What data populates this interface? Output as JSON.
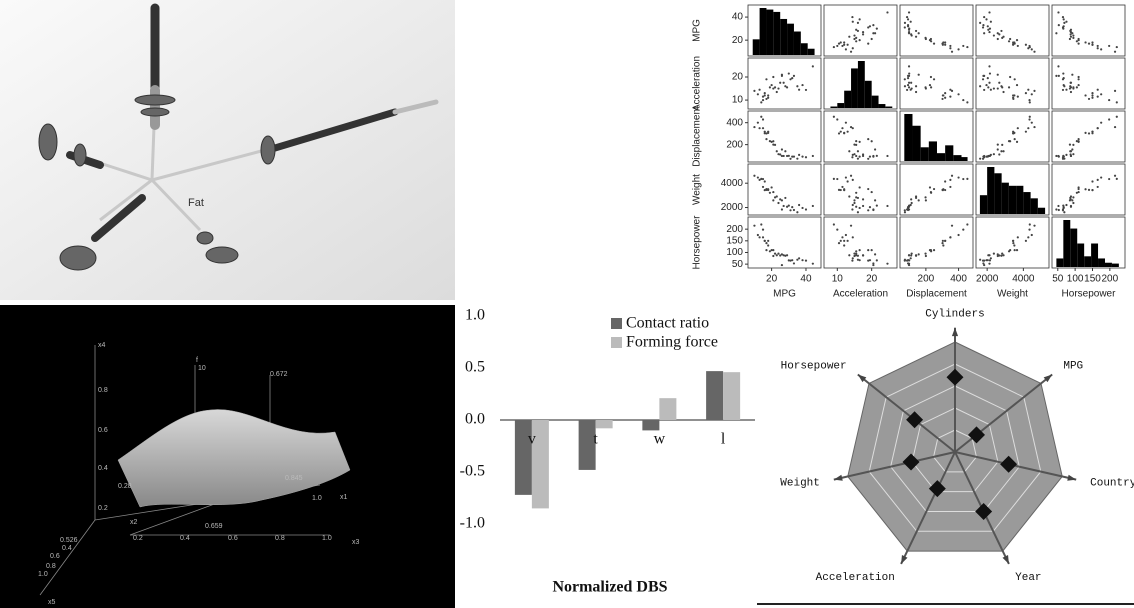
{
  "glyph": {
    "label": "Fat"
  },
  "surface": {
    "labels": [
      "x4",
      "0.8",
      "0.6",
      "0.4",
      "0.2",
      "f",
      "10",
      "0.672",
      "0.28",
      "0.845",
      "x1",
      "1.0",
      "x2",
      "0.659",
      "x3",
      "0.2",
      "0.4",
      "0.6",
      "0.8",
      "1.0",
      "0.526",
      "0.4",
      "0.6",
      "0.8",
      "1.0",
      "x5"
    ]
  },
  "chart_data": [
    {
      "type": "scatter_matrix",
      "variables": [
        {
          "name": "MPG",
          "lim": [
            8,
            47
          ],
          "ticks": [
            20,
            40
          ],
          "bins": [
            9,
            13,
            17,
            21,
            25,
            29,
            33,
            37,
            41,
            45
          ],
          "counts": [
            20,
            60,
            58,
            55,
            46,
            40,
            30,
            15,
            8
          ]
        },
        {
          "name": "Acceleration",
          "lim": [
            7,
            26.5
          ],
          "ticks": [
            10,
            20
          ],
          "bins": [
            8,
            10,
            12,
            14,
            16,
            18,
            20,
            22,
            24,
            26
          ],
          "counts": [
            3,
            10,
            35,
            80,
            95,
            55,
            25,
            8,
            3
          ]
        },
        {
          "name": "Displacement",
          "lim": [
            60,
            470
          ],
          "ticks": [
            200,
            400
          ],
          "bins": [
            68,
            118,
            168,
            218,
            268,
            318,
            368,
            418,
            455
          ],
          "counts": [
            120,
            90,
            35,
            50,
            20,
            40,
            15,
            10
          ]
        },
        {
          "name": "Weight",
          "lim": [
            1550,
            5250
          ],
          "ticks": [
            2000,
            4000
          ],
          "bins": [
            1600,
            2000,
            2400,
            2800,
            3200,
            3600,
            4000,
            4400,
            4800,
            5200
          ],
          "counts": [
            30,
            75,
            65,
            50,
            45,
            45,
            35,
            25,
            10
          ]
        },
        {
          "name": "Horsepower",
          "lim": [
            42,
            235
          ],
          "ticks": [
            50,
            100,
            150,
            200
          ],
          "bins": [
            46,
            66,
            86,
            106,
            126,
            146,
            166,
            186,
            206,
            226
          ],
          "counts": [
            20,
            110,
            90,
            55,
            25,
            55,
            20,
            10,
            8
          ]
        }
      ],
      "points": [
        [
          18,
          12,
          307,
          3504,
          130
        ],
        [
          15,
          11.5,
          350,
          3693,
          165
        ],
        [
          18,
          11,
          318,
          3436,
          150
        ],
        [
          16,
          12,
          304,
          3433,
          150
        ],
        [
          17,
          10.5,
          302,
          3449,
          140
        ],
        [
          15,
          10,
          429,
          4341,
          198
        ],
        [
          14,
          9,
          454,
          4354,
          220
        ],
        [
          24,
          15,
          113,
          2372,
          95
        ],
        [
          22,
          15.5,
          198,
          2833,
          95
        ],
        [
          27,
          17.5,
          97,
          2130,
          88
        ],
        [
          26,
          20.5,
          97,
          1835,
          46
        ],
        [
          25,
          17.5,
          110,
          2672,
          87
        ],
        [
          21,
          15,
          200,
          2587,
          85
        ],
        [
          10,
          14,
          360,
          4615,
          215
        ],
        [
          13,
          14.5,
          350,
          4274,
          165
        ],
        [
          31,
          19,
          71,
          1773,
          65
        ],
        [
          35,
          16,
          72,
          1613,
          69
        ],
        [
          28,
          16,
          140,
          2790,
          86
        ],
        [
          32,
          19.5,
          91,
          2035,
          67
        ],
        [
          29,
          15.5,
          97,
          2065,
          88
        ],
        [
          19,
          15.5,
          232,
          3210,
          105
        ],
        [
          20,
          16.5,
          225,
          3651,
          110
        ],
        [
          23,
          13.5,
          140,
          2905,
          88
        ],
        [
          36,
          14.5,
          107,
          2205,
          75
        ],
        [
          33,
          20.5,
          91,
          1795,
          53
        ],
        [
          44,
          24.6,
          97,
          2130,
          52
        ],
        [
          17,
          19,
          250,
          3520,
          110
        ],
        [
          38,
          16.5,
          91,
          1965,
          67
        ],
        [
          30,
          21.5,
          98,
          2155,
          66
        ],
        [
          16,
          13,
          318,
          4140,
          150
        ],
        [
          12,
          12.5,
          400,
          4464,
          175
        ],
        [
          26,
          21,
          156,
          2585,
          92
        ],
        [
          40,
          14.4,
          85,
          1835,
          65
        ],
        [
          21,
          20,
          231,
          3270,
          110
        ]
      ],
      "color": "#000000"
    },
    {
      "type": "bar",
      "x_label": "Normalized DBS",
      "categories": [
        "v",
        "t",
        "w",
        "l"
      ],
      "series": [
        {
          "name": "Contact ratio",
          "color": "#666666",
          "values": [
            -0.72,
            -0.48,
            -0.1,
            0.47
          ]
        },
        {
          "name": "Forming force",
          "color": "#bbbbbb",
          "values": [
            -0.85,
            -0.08,
            0.21,
            0.46
          ]
        }
      ],
      "ylim": [
        -1,
        1
      ],
      "yticks": [
        {
          "value": 1,
          "label": "1.0"
        },
        0.5,
        {
          "value": 0,
          "label": "0.0"
        },
        -0.5,
        {
          "value": -1,
          "label": "-1.0"
        }
      ],
      "grid": false,
      "legend": "top-right"
    },
    {
      "type": "radar",
      "axes": [
        "Cylinders",
        "MPG",
        "Country",
        "Year",
        "Acceleration",
        "Weight",
        "Horsepower"
      ],
      "values": [
        0.68,
        0.25,
        0.5,
        0.6,
        0.37,
        0.41,
        0.47
      ],
      "rlim": [
        0,
        1
      ],
      "color": "#9a9a9a",
      "marker_color": "#111111"
    }
  ]
}
